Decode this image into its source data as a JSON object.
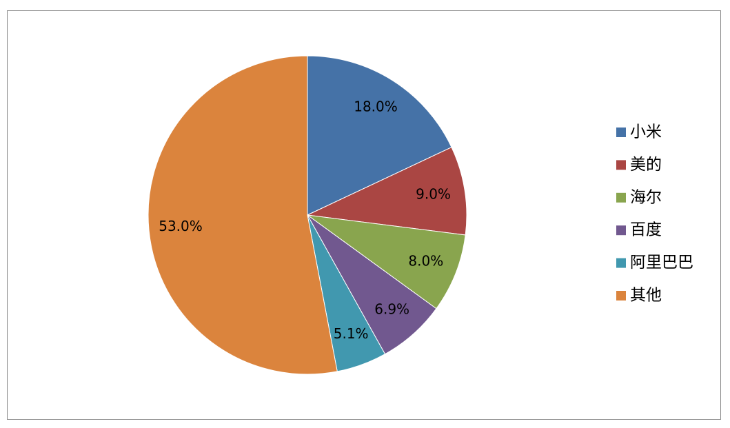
{
  "chart_data": {
    "type": "pie",
    "categories": [
      "小米",
      "美的",
      "海尔",
      "百度",
      "阿里巴巴",
      "其他"
    ],
    "values": [
      18.0,
      9.0,
      8.0,
      6.9,
      5.1,
      53.0
    ],
    "value_labels": [
      "18.0%",
      "9.0%",
      "8.0%",
      "6.9%",
      "5.1%",
      "53.0%"
    ],
    "colors": [
      "#4572A7",
      "#AA4643",
      "#89A54E",
      "#71588F",
      "#4198AF",
      "#DB843D"
    ],
    "legend": "right"
  }
}
